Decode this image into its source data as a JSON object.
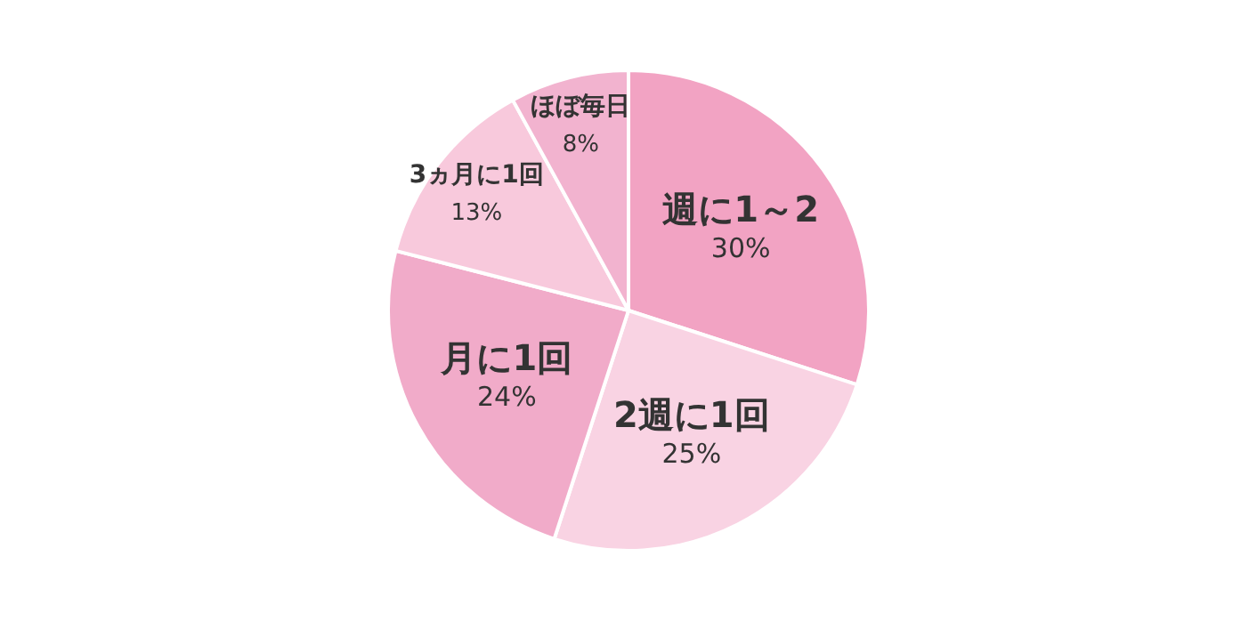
{
  "chart_data": {
    "type": "pie",
    "categories": [
      "週に1～2",
      "2週に1回",
      "月に1回",
      "3ヵ月に1回",
      "ほぼ毎日"
    ],
    "values": [
      30,
      25,
      24,
      13,
      8
    ],
    "value_labels": [
      "30%",
      "25%",
      "24%",
      "13%",
      "8%"
    ],
    "colors": [
      "#f2a3c3",
      "#f9d3e3",
      "#f1abc9",
      "#f8c9dc",
      "#f2b3cf"
    ],
    "legend": false
  }
}
